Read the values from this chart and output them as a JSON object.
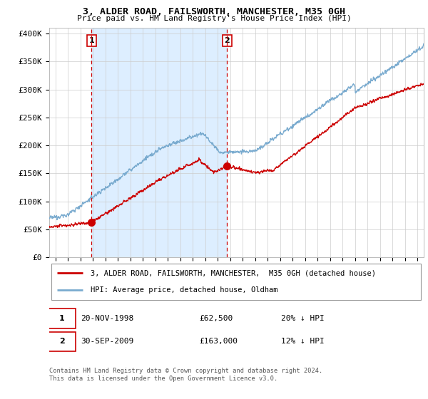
{
  "title": "3, ALDER ROAD, FAILSWORTH, MANCHESTER, M35 0GH",
  "subtitle": "Price paid vs. HM Land Registry's House Price Index (HPI)",
  "ylabel_ticks": [
    "£0",
    "£50K",
    "£100K",
    "£150K",
    "£200K",
    "£250K",
    "£300K",
    "£350K",
    "£400K"
  ],
  "ytick_values": [
    0,
    50000,
    100000,
    150000,
    200000,
    250000,
    300000,
    350000,
    400000
  ],
  "ylim": [
    0,
    410000
  ],
  "xlim_start": 1995.5,
  "xlim_end": 2025.5,
  "sale1_x": 1998.89,
  "sale1_y": 62500,
  "sale2_x": 2009.75,
  "sale2_y": 163000,
  "vline1_x": 1998.89,
  "vline2_x": 2009.75,
  "legend_line1": "3, ALDER ROAD, FAILSWORTH, MANCHESTER,  M35 0GH (detached house)",
  "legend_line2": "HPI: Average price, detached house, Oldham",
  "footnote": "Contains HM Land Registry data © Crown copyright and database right 2024.\nThis data is licensed under the Open Government Licence v3.0.",
  "color_red": "#cc0000",
  "color_blue": "#7aabcf",
  "color_vline": "#cc0000",
  "color_shade": "#ddeeff",
  "background_color": "#ffffff",
  "grid_color": "#cccccc"
}
